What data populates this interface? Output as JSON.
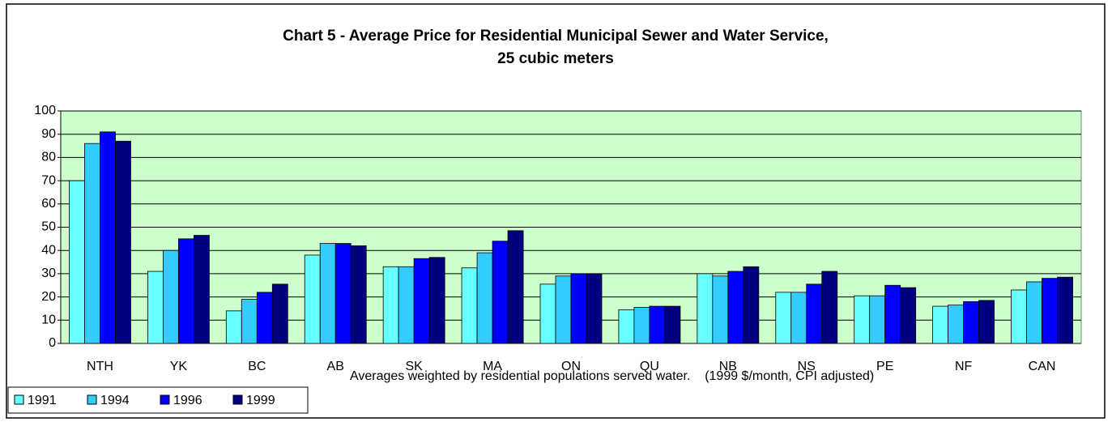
{
  "chart_data": {
    "type": "bar",
    "title": [
      "Chart 5 - Average Price for Residential Municipal Sewer and Water Service,",
      "25 cubic meters"
    ],
    "annotation": "Averages weighted by residential populations served water.    (1999 $/month, CPI adjusted)",
    "categories": [
      "NTH",
      "YK",
      "BC",
      "AB",
      "SK",
      "MA",
      "ON",
      "QU",
      "NB",
      "NS",
      "PE",
      "NF",
      "CAN"
    ],
    "series": [
      {
        "name": "1991",
        "color": "#66ffff",
        "values": [
          70,
          31,
          14,
          38,
          33,
          32.5,
          25.5,
          14.5,
          30,
          22,
          20.5,
          16,
          23
        ]
      },
      {
        "name": "1994",
        "color": "#33ccff",
        "values": [
          86,
          40,
          19,
          43,
          33,
          39,
          29,
          15.5,
          29,
          22,
          20.5,
          16.5,
          26.5
        ]
      },
      {
        "name": "1996",
        "color": "#0000ff",
        "values": [
          91,
          45,
          22,
          43,
          36.5,
          44,
          30,
          16,
          31,
          25.5,
          25,
          18,
          28
        ]
      },
      {
        "name": "1999",
        "color": "#000080",
        "values": [
          87,
          46.5,
          25.5,
          42,
          37,
          48.5,
          30,
          16,
          33,
          31,
          24,
          18.5,
          28.5
        ]
      }
    ],
    "ylim": [
      0,
      100
    ],
    "yticks": [
      0,
      10,
      20,
      30,
      40,
      50,
      60,
      70,
      80,
      90,
      100
    ],
    "grid": true,
    "plot_background": "#ccffcc",
    "legend": "bottom-left"
  }
}
